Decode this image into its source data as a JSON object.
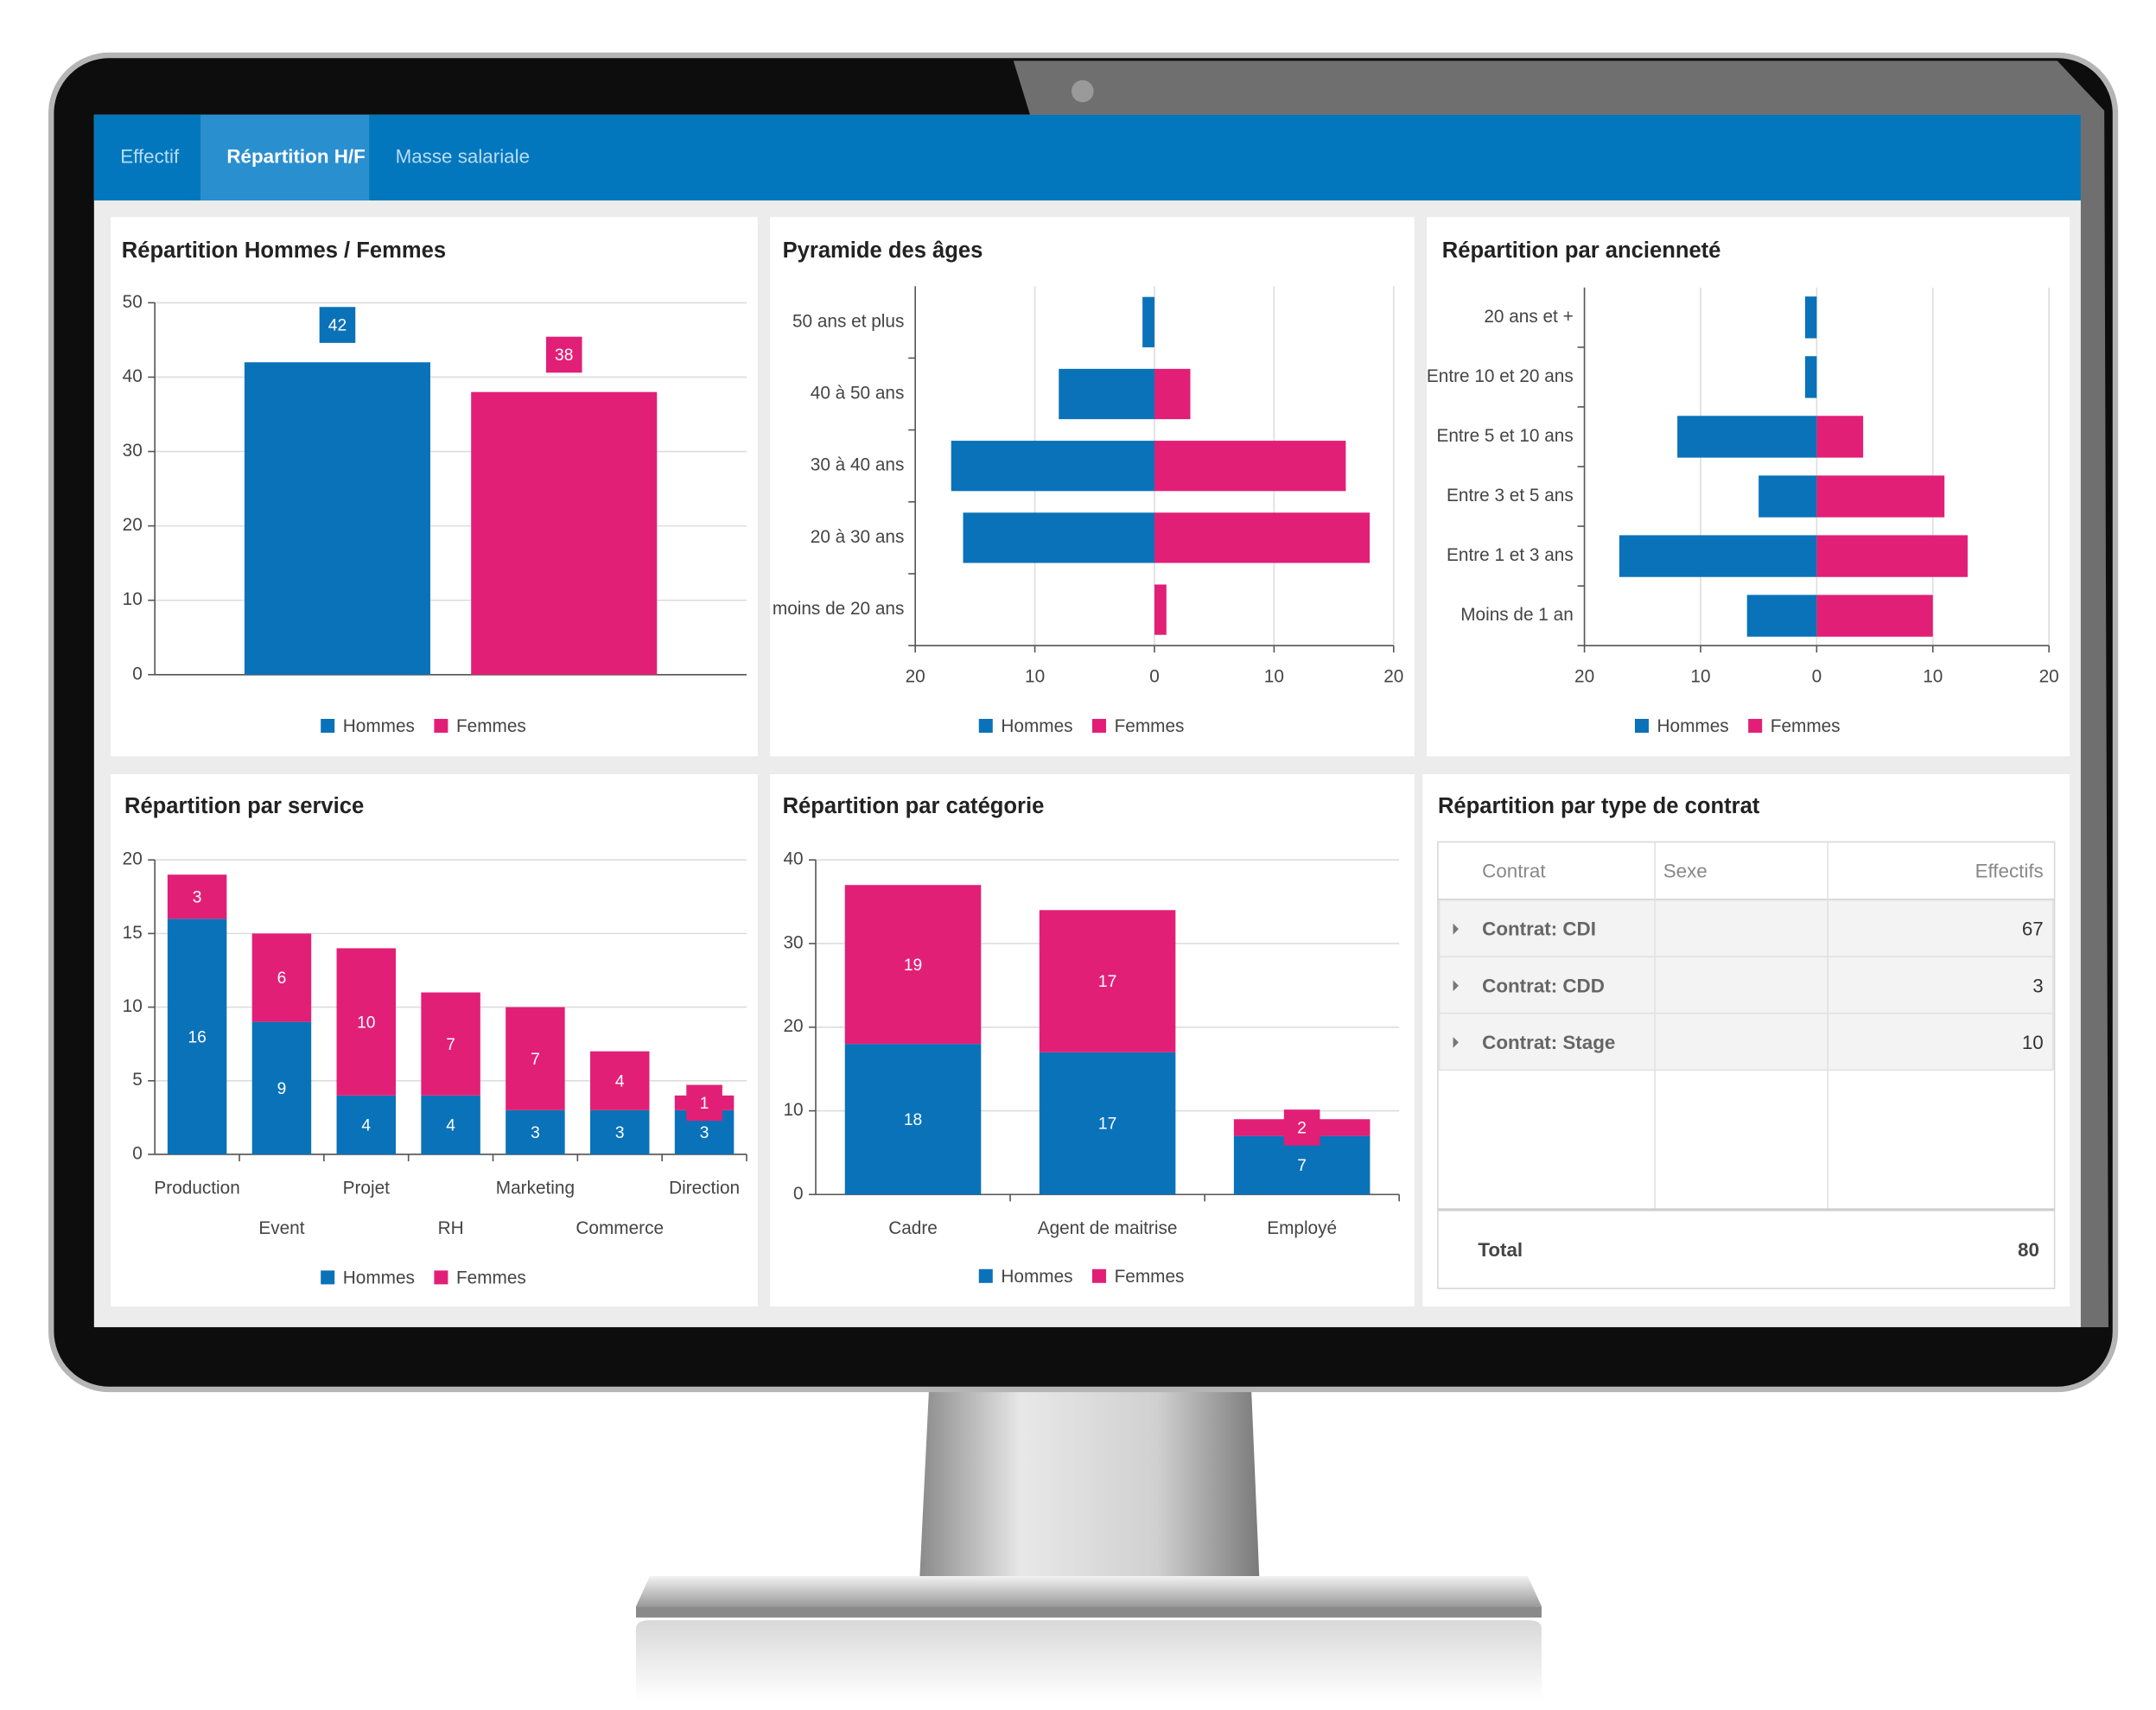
{
  "tabs": [
    {
      "label": "Effectif",
      "active": false
    },
    {
      "label": "Répartition H/F",
      "active": true
    },
    {
      "label": "Masse salariale",
      "active": false
    }
  ],
  "chart_data": [
    {
      "type": "bar",
      "title": "Répartition Hommes / Femmes",
      "categories": [
        null
      ],
      "series": [
        {
          "name": "Hommes",
          "color": "#0a72b8",
          "values": [
            42
          ]
        },
        {
          "name": "Femmes",
          "color": "#e21f76",
          "values": [
            38
          ]
        }
      ],
      "ylim": [
        0,
        50
      ],
      "yticks": [
        0,
        10,
        20,
        30,
        40,
        50
      ],
      "grid": true,
      "data_labels": true,
      "legend": "bottom"
    },
    {
      "type": "hbar",
      "title": "Pyramide des âges",
      "categories": [
        "50 ans et plus",
        "40 à 50 ans",
        "30 à 40 ans",
        "20 à 30 ans",
        "moins de 20 ans"
      ],
      "series": [
        {
          "name": "Hommes",
          "color": "#0a72b8",
          "values": [
            -1,
            -8,
            -17,
            -16,
            0
          ]
        },
        {
          "name": "Femmes",
          "color": "#e21f76",
          "values": [
            0,
            3,
            16,
            18,
            1
          ]
        }
      ],
      "xlim": [
        -20,
        20
      ],
      "xticks": [
        {
          "value": -20,
          "label": "20"
        },
        {
          "value": -10,
          "label": "10"
        },
        0,
        10,
        20
      ],
      "grid": true,
      "data_labels": false,
      "legend": "bottom"
    },
    {
      "type": "hbar",
      "title": "Répartition par ancienneté",
      "categories": [
        "20 ans et +",
        "Entre 10 et 20 ans",
        "Entre 5 et 10 ans",
        "Entre 3 et 5 ans",
        "Entre 1 et 3 ans",
        "Moins de 1 an"
      ],
      "series": [
        {
          "name": "Hommes",
          "color": "#0a72b8",
          "values": [
            -1,
            -1,
            -12,
            -5,
            -17,
            -6
          ]
        },
        {
          "name": "Femmes",
          "color": "#e21f76",
          "values": [
            0,
            0,
            4,
            11,
            13,
            10
          ]
        }
      ],
      "xlim": [
        -20,
        20
      ],
      "xticks": [
        {
          "value": -20,
          "label": "20"
        },
        {
          "value": -10,
          "label": "10"
        },
        0,
        10,
        20
      ],
      "grid": true,
      "data_labels": false,
      "legend": "bottom"
    },
    {
      "type": "stacked_bar",
      "title": "Répartition par service",
      "categories": [
        "Production",
        "Event",
        "Projet",
        "RH",
        "Marketing",
        "Commerce",
        "Direction"
      ],
      "series": [
        {
          "name": "Hommes",
          "color": "#0a72b8",
          "values": [
            16,
            9,
            4,
            4,
            3,
            3,
            3
          ]
        },
        {
          "name": "Femmes",
          "color": "#e21f76",
          "values": [
            3,
            6,
            10,
            7,
            7,
            4,
            1
          ]
        }
      ],
      "ylim": [
        0,
        20
      ],
      "yticks": [
        0,
        5,
        10,
        15,
        20
      ],
      "grid": true,
      "data_labels": true,
      "legend": "bottom"
    },
    {
      "type": "stacked_bar",
      "title": "Répartition par catégorie",
      "categories": [
        "Cadre",
        "Agent de maitrise",
        "Employé"
      ],
      "series": [
        {
          "name": "Hommes",
          "color": "#0a72b8",
          "values": [
            18,
            17,
            7
          ]
        },
        {
          "name": "Femmes",
          "color": "#e21f76",
          "values": [
            19,
            17,
            2
          ]
        }
      ],
      "ylim": [
        0,
        40
      ],
      "yticks": [
        0,
        10,
        20,
        30,
        40
      ],
      "grid": true,
      "data_labels": true,
      "legend": "bottom"
    }
  ],
  "table": {
    "title": "Répartition par type de contrat",
    "columns": [
      "Contrat",
      "Sexe",
      "Effectifs"
    ],
    "rows": [
      [
        "Contrat: CDI",
        67
      ],
      [
        "Contrat: CDD",
        3
      ],
      [
        "Contrat: Stage",
        10
      ]
    ],
    "total": {
      "label": "Total",
      "value": 80
    }
  }
}
